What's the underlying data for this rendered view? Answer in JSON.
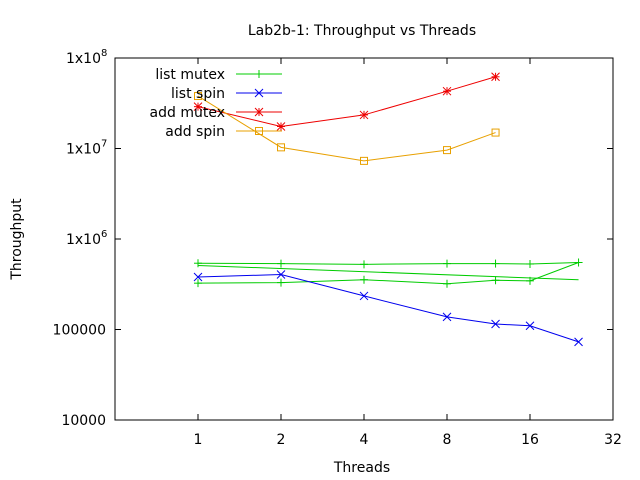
{
  "chart_data": {
    "type": "line",
    "title": "Lab2b-1: Throughput vs Threads",
    "xlabel": "Threads",
    "ylabel": "Throughput",
    "x_scale": "log2",
    "y_scale": "log10",
    "xlim": [
      0.5,
      32
    ],
    "ylim": [
      10000,
      100000000
    ],
    "x_ticks": [
      1,
      2,
      4,
      8,
      16,
      32
    ],
    "x_tick_labels": [
      "1",
      "2",
      "4",
      "8",
      "16",
      "32"
    ],
    "y_ticks": [
      10000,
      100000,
      1000000,
      10000000,
      100000000
    ],
    "y_tick_labels": [
      "10000",
      "100000",
      "1x10",
      "1x10",
      "1x10"
    ],
    "y_tick_exponents": [
      "",
      "",
      "6",
      "7",
      "8"
    ],
    "grid": false,
    "legend_position": "top-left",
    "series": [
      {
        "name": "list mutex",
        "color": "#00cc00",
        "marker": "plus",
        "x": [
          1,
          2,
          4,
          8,
          12,
          16,
          24,
          16,
          12,
          8,
          4,
          2,
          1
        ],
        "y": [
          540000,
          535000,
          525000,
          535000,
          535000,
          530000,
          550000,
          345000,
          350000,
          320000,
          355000,
          330000,
          325000
        ]
      },
      {
        "name": "list spin",
        "color": "#0000ee",
        "marker": "x",
        "x": [
          1,
          2,
          4,
          8,
          12,
          16,
          24
        ],
        "y": [
          380000,
          405000,
          235000,
          138000,
          115000,
          110000,
          73000
        ]
      },
      {
        "name": "add mutex",
        "color": "#ee0000",
        "marker": "star",
        "x": [
          1,
          2,
          4,
          8,
          12
        ],
        "y": [
          29000000,
          17500000,
          23500000,
          43000000,
          62000000
        ]
      },
      {
        "name": "add spin",
        "color": "#e8a000",
        "marker": "square",
        "x": [
          1,
          2,
          4,
          8,
          12
        ],
        "y": [
          38000000,
          10300000,
          7300000,
          9600000,
          15000000
        ]
      }
    ],
    "extra_lines": [
      {
        "color": "#00cc00",
        "x": [
          1,
          24
        ],
        "y": [
          510000,
          355000
        ]
      }
    ]
  }
}
